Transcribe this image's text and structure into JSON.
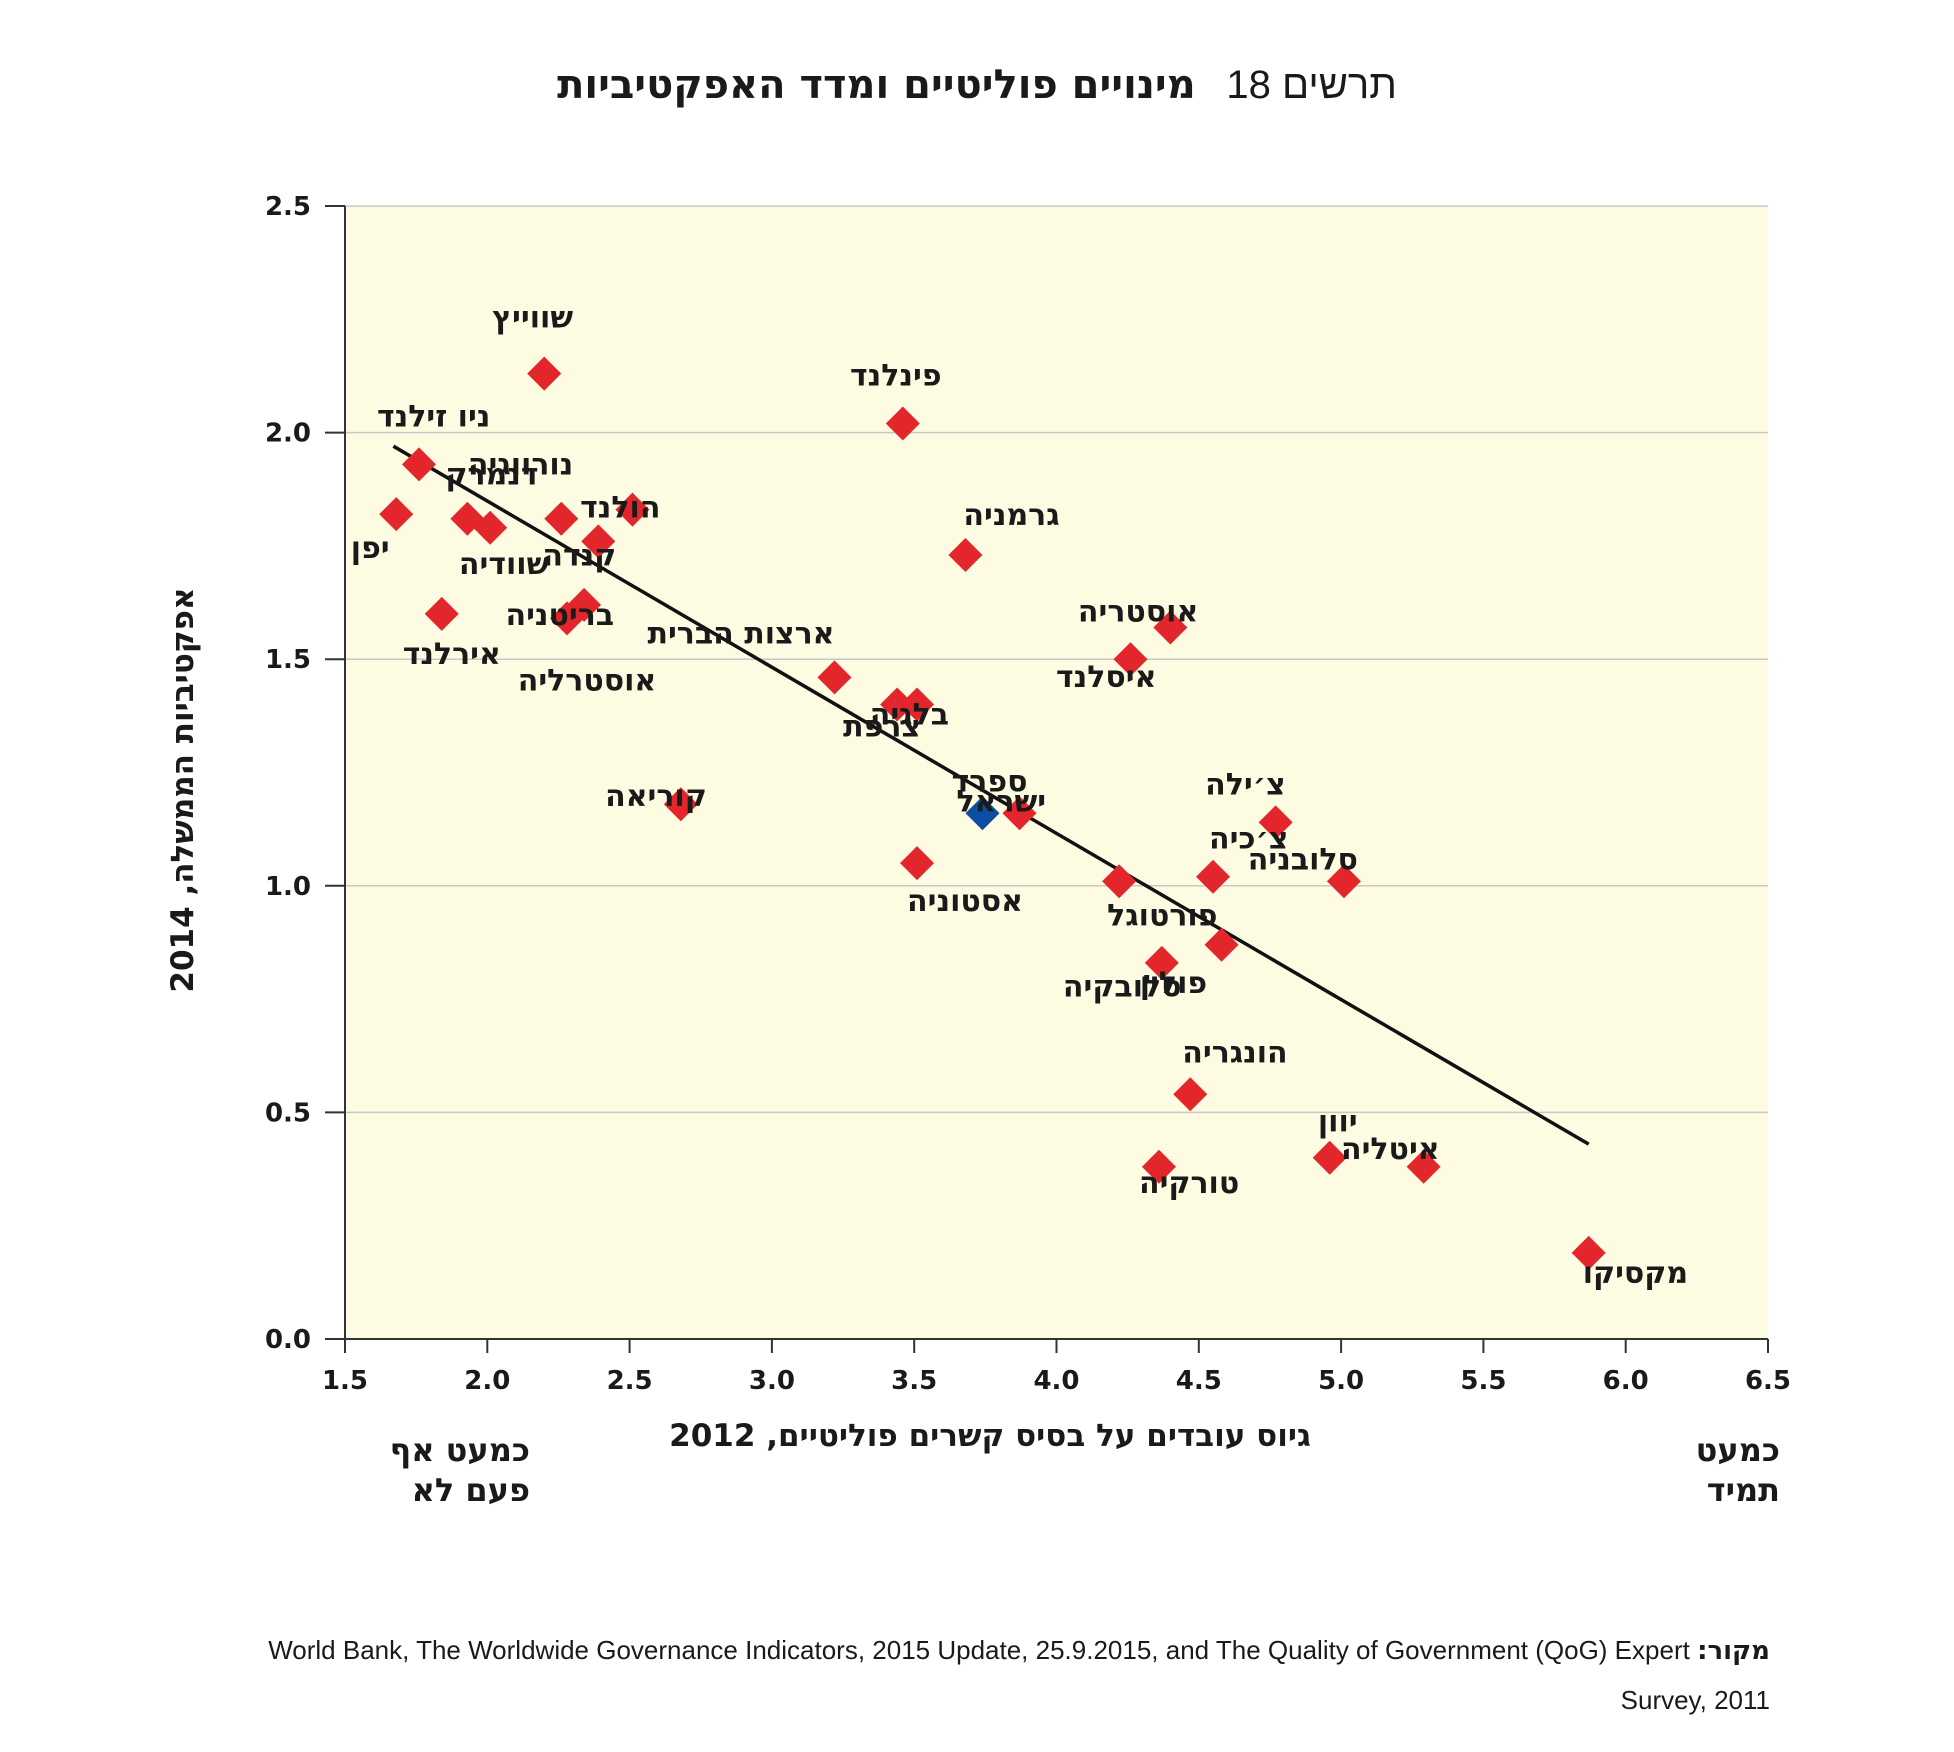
{
  "figure": {
    "number_label": "תרשים 18",
    "title": "מינויים פוליטיים ומדד האפקטיביות"
  },
  "axes": {
    "x_title": "גיוס עובדים על בסיס קשרים פוליטיים, 2012",
    "y_title": "אפקטיביות הממשלה, 2014",
    "x_low_label": "כמעט אף פעם לא",
    "x_high_label": "כמעט תמיד"
  },
  "source": {
    "label": "מקור:",
    "text_line1": "World Bank, The Worldwide Governance Indicators, 2015 Update, 25.9.2015, and The Quality of Government (QoG) Expert",
    "text_line2": "Survey, 2011"
  },
  "colors": {
    "plot_background": "#fdfbe1",
    "gridline": "#c8c8c8",
    "marker_default": "#e3262c",
    "marker_highlight": "#0b4ea2",
    "trendline": "#111111"
  },
  "chart_data": {
    "type": "scatter",
    "xlabel": "גיוס עובדים על בסיס קשרים פוליטיים, 2012",
    "ylabel": "אפקטיביות הממשלה, 2014",
    "xlim": [
      1.5,
      6.5
    ],
    "ylim": [
      0.0,
      2.5
    ],
    "x_ticks": [
      "1.5",
      "2.0",
      "2.5",
      "3.0",
      "3.5",
      "4.0",
      "4.5",
      "5.0",
      "5.5",
      "6.0",
      "6.5"
    ],
    "y_ticks": [
      "0.0",
      "0.5",
      "1.0",
      "1.5",
      "2.0",
      "2.5"
    ],
    "grid": "horizontal",
    "trendline": {
      "x": [
        1.67,
        5.87
      ],
      "y": [
        1.97,
        0.43
      ]
    },
    "points": [
      {
        "label": "שווייץ",
        "x": 2.2,
        "y": 2.13,
        "highlight": false
      },
      {
        "label": "פינלנד",
        "x": 3.46,
        "y": 2.02,
        "highlight": false
      },
      {
        "label": "ניו זילנד",
        "x": 1.76,
        "y": 1.93,
        "highlight": false
      },
      {
        "label": "דנמרק",
        "x": 1.93,
        "y": 1.81,
        "highlight": false
      },
      {
        "label": "נורווגיה",
        "x": 2.26,
        "y": 1.81,
        "highlight": false
      },
      {
        "label": "יפן",
        "x": 1.68,
        "y": 1.82,
        "highlight": false
      },
      {
        "label": "שוודיה",
        "x": 2.01,
        "y": 1.79,
        "highlight": false
      },
      {
        "label": "הולנד",
        "x": 2.51,
        "y": 1.83,
        "highlight": false
      },
      {
        "label": "קנדה",
        "x": 2.39,
        "y": 1.76,
        "highlight": false
      },
      {
        "label": "גרמניה",
        "x": 3.68,
        "y": 1.73,
        "highlight": false
      },
      {
        "label": "בריטניה",
        "x": 2.34,
        "y": 1.62,
        "highlight": false
      },
      {
        "label": "אוסטרליה",
        "x": 2.28,
        "y": 1.59,
        "highlight": false
      },
      {
        "label": "אירלנד",
        "x": 1.84,
        "y": 1.6,
        "highlight": false
      },
      {
        "label": "אוסטריה",
        "x": 4.4,
        "y": 1.57,
        "highlight": false
      },
      {
        "label": "ארצות הברית",
        "x": 3.22,
        "y": 1.46,
        "highlight": false
      },
      {
        "label": "איסלנד",
        "x": 4.26,
        "y": 1.5,
        "highlight": false
      },
      {
        "label": "צרפת",
        "x": 3.44,
        "y": 1.4,
        "highlight": false
      },
      {
        "label": "בלגיה",
        "x": 3.51,
        "y": 1.4,
        "highlight": false
      },
      {
        "label": "קוריאה",
        "x": 2.68,
        "y": 1.18,
        "highlight": false
      },
      {
        "label": "ישראל",
        "x": 3.74,
        "y": 1.16,
        "highlight": true
      },
      {
        "label": "ספרד",
        "x": 3.87,
        "y": 1.16,
        "highlight": false
      },
      {
        "label": "צ׳ילה",
        "x": 4.77,
        "y": 1.14,
        "highlight": false
      },
      {
        "label": "צ׳כיה",
        "x": 4.55,
        "y": 1.02,
        "highlight": false
      },
      {
        "label": "סלובניה",
        "x": 5.01,
        "y": 1.01,
        "highlight": false
      },
      {
        "label": "פורטוגל",
        "x": 4.22,
        "y": 1.01,
        "highlight": false
      },
      {
        "label": "אסטוניה",
        "x": 3.51,
        "y": 1.05,
        "highlight": false
      },
      {
        "label": "סלובקיה",
        "x": 4.58,
        "y": 0.87,
        "highlight": false
      },
      {
        "label": "פולין",
        "x": 4.37,
        "y": 0.83,
        "highlight": false
      },
      {
        "label": "הונגריה",
        "x": 4.47,
        "y": 0.54,
        "highlight": false
      },
      {
        "label": "יוון",
        "x": 4.96,
        "y": 0.4,
        "highlight": false
      },
      {
        "label": "איטליה",
        "x": 5.29,
        "y": 0.38,
        "highlight": false
      },
      {
        "label": "טורקיה",
        "x": 4.36,
        "y": 0.38,
        "highlight": false
      },
      {
        "label": "מקסיקו",
        "x": 5.87,
        "y": 0.19,
        "highlight": false
      }
    ]
  }
}
